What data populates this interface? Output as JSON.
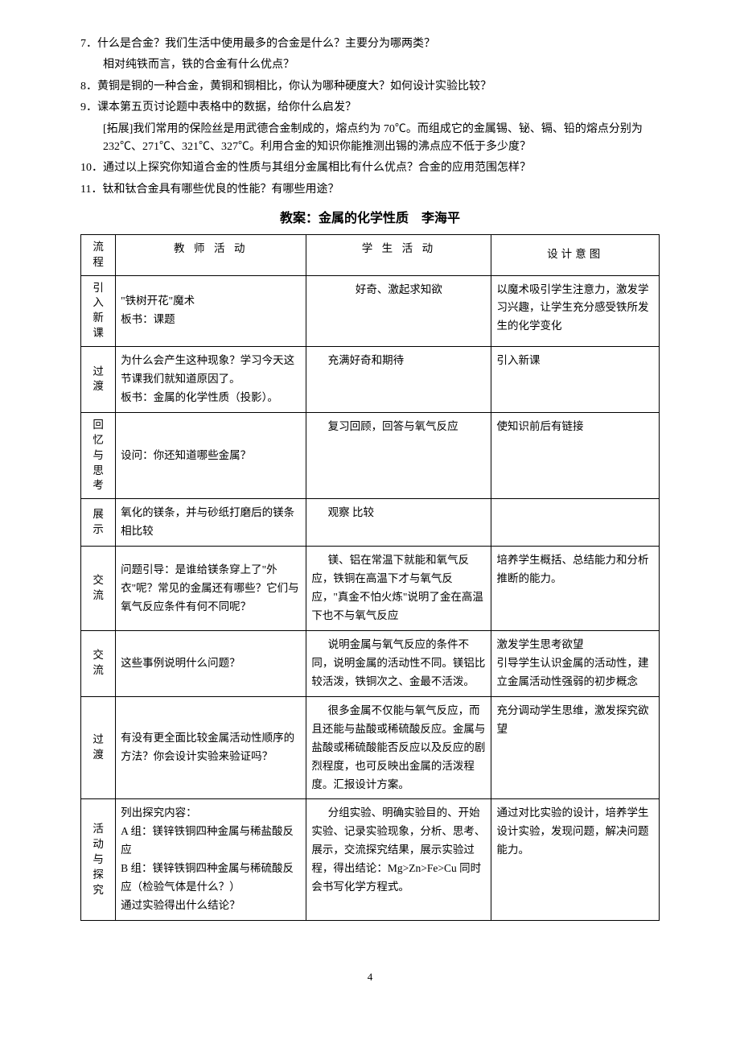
{
  "questions": {
    "q7a": "7．什么是合金？我们生活中使用最多的合金是什么？主要分为哪两类？",
    "q7b": "相对纯铁而言，铁的合金有什么优点？",
    "q8": "8．黄铜是铜的一种合金，黄铜和铜相比，你认为哪种硬度大？如何设计实验比较？",
    "q9a": "9．课本第五页讨论题中表格中的数据，给你什么启发？",
    "q9b": "[拓展]我们常用的保险丝是用武德合金制成的，熔点约为 70℃。而组成它的金属锡、铋、镉、铅的熔点分别为 232℃、271℃、321℃、327℃。利用合金的知识你能推测出锡的沸点应不低于多少度？",
    "q10": "10．通过以上探究你知道合金的性质与其组分金属相比有什么优点？合金的应用范围怎样？",
    "q11": "11．钛和钛合金具有哪些优良的性能？有哪些用途？"
  },
  "title": "教案：金属的化学性质　李海平",
  "headers": {
    "c1a": "流",
    "c1b": "程",
    "c2": "教 师 活 动",
    "c3": "学 生 活 动",
    "c4": "设计意图"
  },
  "rows": [
    {
      "flow": [
        "引",
        "入",
        "新",
        "课"
      ],
      "t": "\"铁树开花\"魔术\n板书：课题",
      "s": "好奇、激起求知欲",
      "d": "以魔术吸引学生注意力，激发学习兴趣，让学生充分感受铁所发生的化学变化"
    },
    {
      "flow": [
        "过",
        "渡"
      ],
      "t": "为什么会产生这种现象？学习今天这节课我们就知道原因了。\n板书：金属的化学性质（投影）。",
      "s": "充满好奇和期待",
      "d": "引入新课"
    },
    {
      "flow": [
        "回",
        "忆",
        "与",
        "思",
        "考"
      ],
      "t": "设问：你还知道哪些金属？",
      "s": "复习回顾，回答与氧气反应",
      "d": "使知识前后有链接"
    },
    {
      "flow": [
        "展",
        "示"
      ],
      "t": "氧化的镁条，并与砂纸打磨后的镁条相比较",
      "s": "观察 比较",
      "d": ""
    },
    {
      "flow": [
        "交",
        "流"
      ],
      "t": "问题引导：是谁给镁条穿上了\"外衣\"呢？常见的金属还有哪些？它们与氧气反应条件有何不同呢？",
      "s": "镁、铝在常温下就能和氧气反应，铁铜在高温下才与氧气反应，\"真金不怕火炼\"说明了金在高温下也不与氧气反应",
      "d": "培养学生概括、总结能力和分析推断的能力。"
    },
    {
      "flow": [
        "交",
        "流"
      ],
      "t": "这些事例说明什么问题？",
      "s": "说明金属与氧气反应的条件不同，说明金属的活动性不同。镁铝比较活泼，铁铜次之、金最不活泼。",
      "d": "激发学生思考欲望\n引导学生认识金属的活动性，建立金属活动性强弱的初步概念"
    },
    {
      "flow": [
        "过",
        "渡"
      ],
      "t": "有没有更全面比较金属活动性顺序的方法？你会设计实验来验证吗？",
      "s": "很多金属不仅能与氧气反应，而且还能与盐酸或稀硫酸反应。金属与盐酸或稀硫酸能否反应以及反应的剧烈程度，也可反映出金属的活泼程度。汇报设计方案。",
      "d": "充分调动学生思维，激发探究欲望"
    },
    {
      "flow": [
        "活",
        "动",
        "与",
        "探",
        "究"
      ],
      "t": "列出探究内容：\nA 组：镁锌铁铜四种金属与稀盐酸反应\nB 组：镁锌铁铜四种金属与稀硫酸反应（检验气体是什么？）\n通过实验得出什么结论？",
      "s": "分组实验、明确实验目的、开始实验、记录实验现象，分析、思考、展示，交流探究结果，展示实验过程，得出结论：Mg>Zn>Fe>Cu 同时会书写化学方程式。",
      "d": "通过对比实验的设计，培养学生设计实验，发现问题，解决问题能力。"
    }
  ],
  "page_number": "4"
}
